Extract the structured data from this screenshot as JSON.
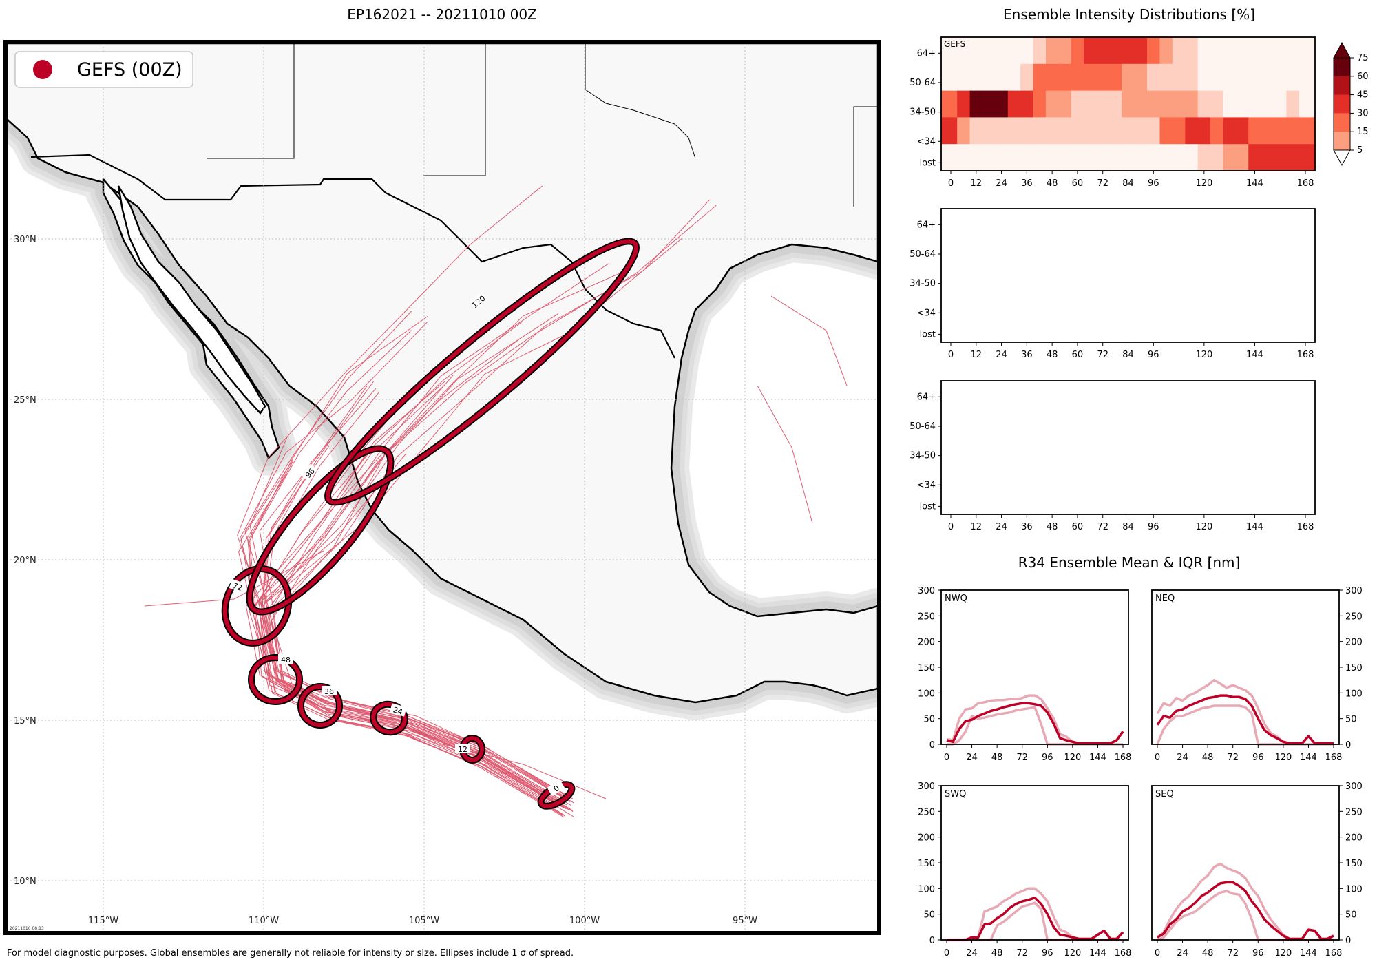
{
  "colors": {
    "accent": "#bd0026",
    "track": "#d9415a",
    "land": "#f8f8f8",
    "ocean": "#ffffff",
    "coastHalo": [
      "#e9e9e9",
      "#dedede",
      "#d1d1d1"
    ],
    "iqr": "#e8a9b4",
    "heat": [
      "#fff5f0",
      "#fdd0c2",
      "#fc9f81",
      "#fb6b4b",
      "#e32f27",
      "#b11218",
      "#67000d"
    ]
  },
  "map": {
    "title": "EP162021 -- 20211010 00Z",
    "legend_label": "GEFS (00Z)",
    "lon_labels": [
      "115°W",
      "110°W",
      "105°W",
      "100°W",
      "95°W"
    ],
    "lat_labels": [
      "30°N",
      "25°N",
      "20°N",
      "15°N",
      "10°N"
    ],
    "timestamp": "20211010 08:13",
    "ellipse_labels": [
      "0",
      "12",
      "24",
      "36",
      "48",
      "72",
      "96",
      "120"
    ],
    "footnote": "For model diagnostic purposes. Global ensembles are generally not reliable for intensity or size. Ellipses include 1 σ of spread."
  },
  "intensity": {
    "title": "Ensemble Intensity Distributions [%]",
    "panel_label": "GEFS",
    "rows": [
      "64+",
      "50-64",
      "34-50",
      "<34",
      "lost"
    ],
    "xticks": [
      "0",
      "12",
      "24",
      "36",
      "48",
      "60",
      "72",
      "84",
      "96",
      "120",
      "144",
      "168"
    ],
    "cbar_ticks": [
      "75",
      "60",
      "45",
      "30",
      "15",
      "5"
    ],
    "chart_data": {
      "type": "heatmap",
      "title": "Ensemble Intensity Distributions [%]",
      "x_hours": [
        0,
        6,
        12,
        18,
        24,
        30,
        36,
        42,
        48,
        54,
        60,
        66,
        72,
        78,
        84,
        90,
        96,
        102,
        108,
        114,
        120,
        126,
        132,
        138,
        144,
        150,
        156,
        162,
        168
      ],
      "levels": [
        0,
        5,
        15,
        30,
        45,
        60,
        75
      ],
      "rows": {
        "64+": [
          0,
          0,
          0,
          0,
          0,
          0,
          0,
          8,
          20,
          20,
          35,
          48,
          48,
          55,
          55,
          55,
          35,
          25,
          8,
          8,
          0,
          0,
          0,
          0,
          0,
          0,
          0,
          0,
          0
        ],
        "50-64": [
          0,
          0,
          0,
          0,
          0,
          0,
          8,
          35,
          35,
          35,
          35,
          35,
          35,
          35,
          20,
          20,
          8,
          8,
          8,
          8,
          0,
          0,
          0,
          0,
          0,
          0,
          0,
          0,
          0
        ],
        "34-50": [
          35,
          50,
          80,
          80,
          80,
          55,
          55,
          35,
          20,
          20,
          8,
          8,
          8,
          8,
          20,
          20,
          20,
          20,
          20,
          20,
          8,
          8,
          0,
          0,
          0,
          0,
          0,
          8,
          0
        ],
        "<34": [
          50,
          20,
          8,
          8,
          8,
          8,
          8,
          8,
          8,
          8,
          8,
          8,
          8,
          8,
          8,
          8,
          8,
          35,
          35,
          55,
          55,
          35,
          55,
          55,
          35,
          35,
          35,
          35,
          35
        ],
        "lost": [
          0,
          0,
          0,
          0,
          0,
          0,
          0,
          0,
          0,
          0,
          0,
          0,
          0,
          0,
          0,
          0,
          0,
          0,
          0,
          0,
          8,
          8,
          20,
          20,
          50,
          55,
          55,
          55,
          55
        ]
      }
    }
  },
  "r34": {
    "title": "R34 Ensemble Mean & IQR [nm]",
    "yticks": [
      "300",
      "250",
      "200",
      "150",
      "100",
      "50",
      "0"
    ],
    "xticks": [
      "0",
      "24",
      "48",
      "72",
      "96",
      "120",
      "144",
      "168"
    ],
    "chart_data": [
      {
        "type": "line",
        "title": "NWQ",
        "ylim": [
          0,
          300
        ],
        "xlim": [
          0,
          168
        ],
        "x": [
          0,
          6,
          12,
          18,
          24,
          30,
          36,
          42,
          48,
          54,
          60,
          66,
          72,
          78,
          84,
          90,
          96,
          102,
          108,
          114,
          120,
          126,
          132,
          138,
          144,
          150,
          156,
          162,
          168
        ],
        "series": [
          {
            "name": "mean",
            "values": [
              8,
              5,
              30,
              45,
              48,
              55,
              60,
              65,
              68,
              72,
              75,
              78,
              80,
              80,
              78,
              75,
              62,
              40,
              12,
              8,
              5,
              2,
              2,
              2,
              2,
              2,
              2,
              8,
              25
            ]
          },
          {
            "name": "q75",
            "values": [
              10,
              8,
              50,
              68,
              70,
              80,
              82,
              85,
              86,
              86,
              88,
              88,
              90,
              95,
              95,
              88,
              70,
              50,
              20,
              15,
              5,
              2,
              2,
              2,
              2,
              2,
              2,
              8,
              25
            ]
          },
          {
            "name": "q25",
            "values": [
              0,
              0,
              8,
              25,
              55,
              50,
              52,
              55,
              58,
              60,
              62,
              66,
              68,
              70,
              72,
              40,
              0,
              0,
              0,
              0,
              0,
              0,
              0,
              0,
              0,
              0,
              0,
              0,
              0
            ]
          }
        ]
      },
      {
        "type": "line",
        "title": "NEQ",
        "ylim": [
          0,
          300
        ],
        "xlim": [
          0,
          168
        ],
        "x": [
          0,
          6,
          12,
          18,
          24,
          30,
          36,
          42,
          48,
          54,
          60,
          66,
          72,
          78,
          84,
          90,
          96,
          102,
          108,
          114,
          120,
          126,
          132,
          138,
          144,
          150,
          156,
          162,
          168
        ],
        "series": [
          {
            "name": "mean",
            "values": [
              38,
              55,
              52,
              65,
              68,
              75,
              80,
              85,
              90,
              92,
              95,
              95,
              92,
              92,
              88,
              75,
              50,
              28,
              18,
              12,
              5,
              2,
              2,
              2,
              16,
              2,
              2,
              2,
              2
            ]
          },
          {
            "name": "q75",
            "values": [
              60,
              80,
              75,
              90,
              85,
              95,
              100,
              108,
              115,
              125,
              118,
              110,
              115,
              110,
              105,
              95,
              70,
              40,
              22,
              15,
              5,
              2,
              2,
              2,
              16,
              2,
              2,
              2,
              2
            ]
          },
          {
            "name": "q25",
            "values": [
              0,
              30,
              45,
              55,
              55,
              60,
              65,
              70,
              72,
              75,
              75,
              75,
              75,
              75,
              72,
              60,
              0,
              0,
              0,
              0,
              0,
              0,
              0,
              0,
              0,
              0,
              0,
              0,
              0
            ]
          }
        ]
      },
      {
        "type": "line",
        "title": "SWQ",
        "ylim": [
          0,
          300
        ],
        "xlim": [
          0,
          168
        ],
        "x": [
          0,
          6,
          12,
          18,
          24,
          30,
          36,
          42,
          48,
          54,
          60,
          66,
          72,
          78,
          84,
          90,
          96,
          102,
          108,
          114,
          120,
          126,
          132,
          138,
          144,
          150,
          156,
          162,
          168
        ],
        "series": [
          {
            "name": "mean",
            "values": [
              0,
              0,
              0,
              0,
              5,
              5,
              30,
              32,
              42,
              50,
              62,
              70,
              75,
              78,
              82,
              70,
              50,
              25,
              10,
              8,
              5,
              2,
              2,
              2,
              10,
              18,
              2,
              2,
              15
            ]
          },
          {
            "name": "q75",
            "values": [
              0,
              0,
              0,
              0,
              5,
              5,
              55,
              60,
              65,
              75,
              82,
              90,
              95,
              100,
              100,
              90,
              75,
              45,
              20,
              15,
              5,
              2,
              2,
              2,
              10,
              18,
              2,
              2,
              15
            ]
          },
          {
            "name": "q25",
            "values": [
              0,
              0,
              0,
              0,
              0,
              0,
              0,
              0,
              28,
              35,
              45,
              55,
              65,
              68,
              72,
              60,
              0,
              0,
              0,
              0,
              0,
              0,
              0,
              0,
              0,
              0,
              0,
              0,
              0
            ]
          }
        ]
      },
      {
        "type": "line",
        "title": "SEQ",
        "ylim": [
          0,
          300
        ],
        "xlim": [
          0,
          168
        ],
        "x": [
          0,
          6,
          12,
          18,
          24,
          30,
          36,
          42,
          48,
          54,
          60,
          66,
          72,
          78,
          84,
          90,
          96,
          102,
          108,
          114,
          120,
          126,
          132,
          138,
          144,
          150,
          156,
          162,
          168
        ],
        "series": [
          {
            "name": "mean",
            "values": [
              5,
              12,
              30,
              40,
              55,
              62,
              72,
              85,
              92,
              102,
              110,
              112,
              112,
              105,
              95,
              75,
              60,
              40,
              28,
              18,
              8,
              2,
              2,
              2,
              20,
              18,
              2,
              2,
              8
            ]
          },
          {
            "name": "q75",
            "values": [
              5,
              15,
              40,
              60,
              75,
              85,
              100,
              115,
              125,
              142,
              148,
              140,
              135,
              130,
              120,
              100,
              85,
              60,
              40,
              25,
              10,
              2,
              2,
              2,
              20,
              18,
              2,
              2,
              8
            ]
          },
          {
            "name": "q25",
            "values": [
              0,
              5,
              20,
              35,
              45,
              50,
              55,
              65,
              75,
              85,
              92,
              95,
              90,
              88,
              70,
              40,
              0,
              0,
              0,
              0,
              0,
              0,
              0,
              0,
              0,
              0,
              0,
              0,
              0
            ]
          }
        ]
      }
    ]
  }
}
